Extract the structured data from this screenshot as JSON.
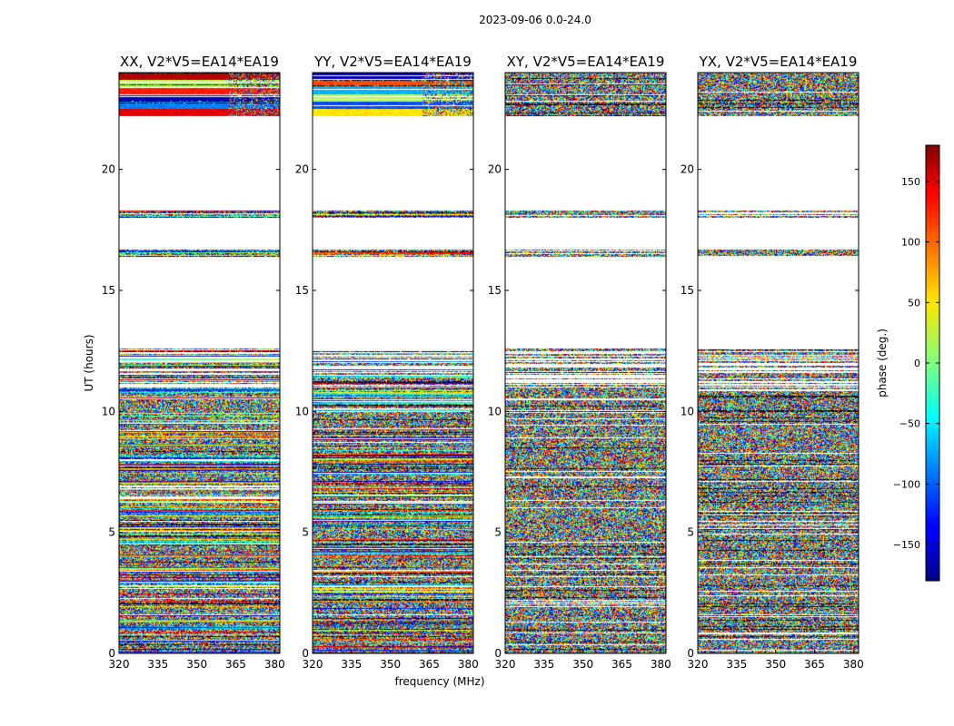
{
  "chart_data": {
    "type": "heatmap",
    "title": "2023-09-06 0.0-24.0",
    "xlabel": "frequency (MHz)",
    "ylabel": "UT (hours)",
    "xlim": [
      320,
      382
    ],
    "ylim": [
      0,
      24
    ],
    "x_ticks": [
      320,
      335,
      350,
      365,
      380
    ],
    "y_ticks": [
      0,
      5,
      10,
      15,
      20
    ],
    "colorbar": {
      "label": "phase (deg.)",
      "range": [
        -180,
        180
      ],
      "ticks": [
        150,
        100,
        50,
        0,
        -50,
        -100,
        -150
      ],
      "tick_labels": [
        "150",
        "100",
        "50",
        "0",
        "−50",
        "−100",
        "−150"
      ],
      "colormap": "jet"
    },
    "panels": [
      {
        "title": "XX, V2*V5=EA14*EA19",
        "mode": "coherent",
        "top_base": [
          0.9,
          0.1,
          0.7,
          -0.9,
          -0.5,
          0.8
        ]
      },
      {
        "title": "YY, V2*V5=EA14*EA19",
        "mode": "coherent",
        "top_base": [
          -0.9,
          0.6,
          -0.4,
          0.1,
          -0.6,
          0.3
        ]
      },
      {
        "title": "XY, V2*V5=EA14*EA19",
        "mode": "noise",
        "top_base": [
          0,
          0,
          0,
          0,
          0,
          0
        ]
      },
      {
        "title": "YX, V2*V5=EA14*EA19",
        "mode": "noise",
        "top_base": [
          0,
          0,
          0,
          0,
          0,
          0
        ]
      }
    ],
    "data_blocks_ut": [
      [
        0.0,
        12.6
      ],
      [
        16.4,
        16.7
      ],
      [
        18.0,
        18.3
      ],
      [
        22.2,
        24.0
      ]
    ]
  }
}
